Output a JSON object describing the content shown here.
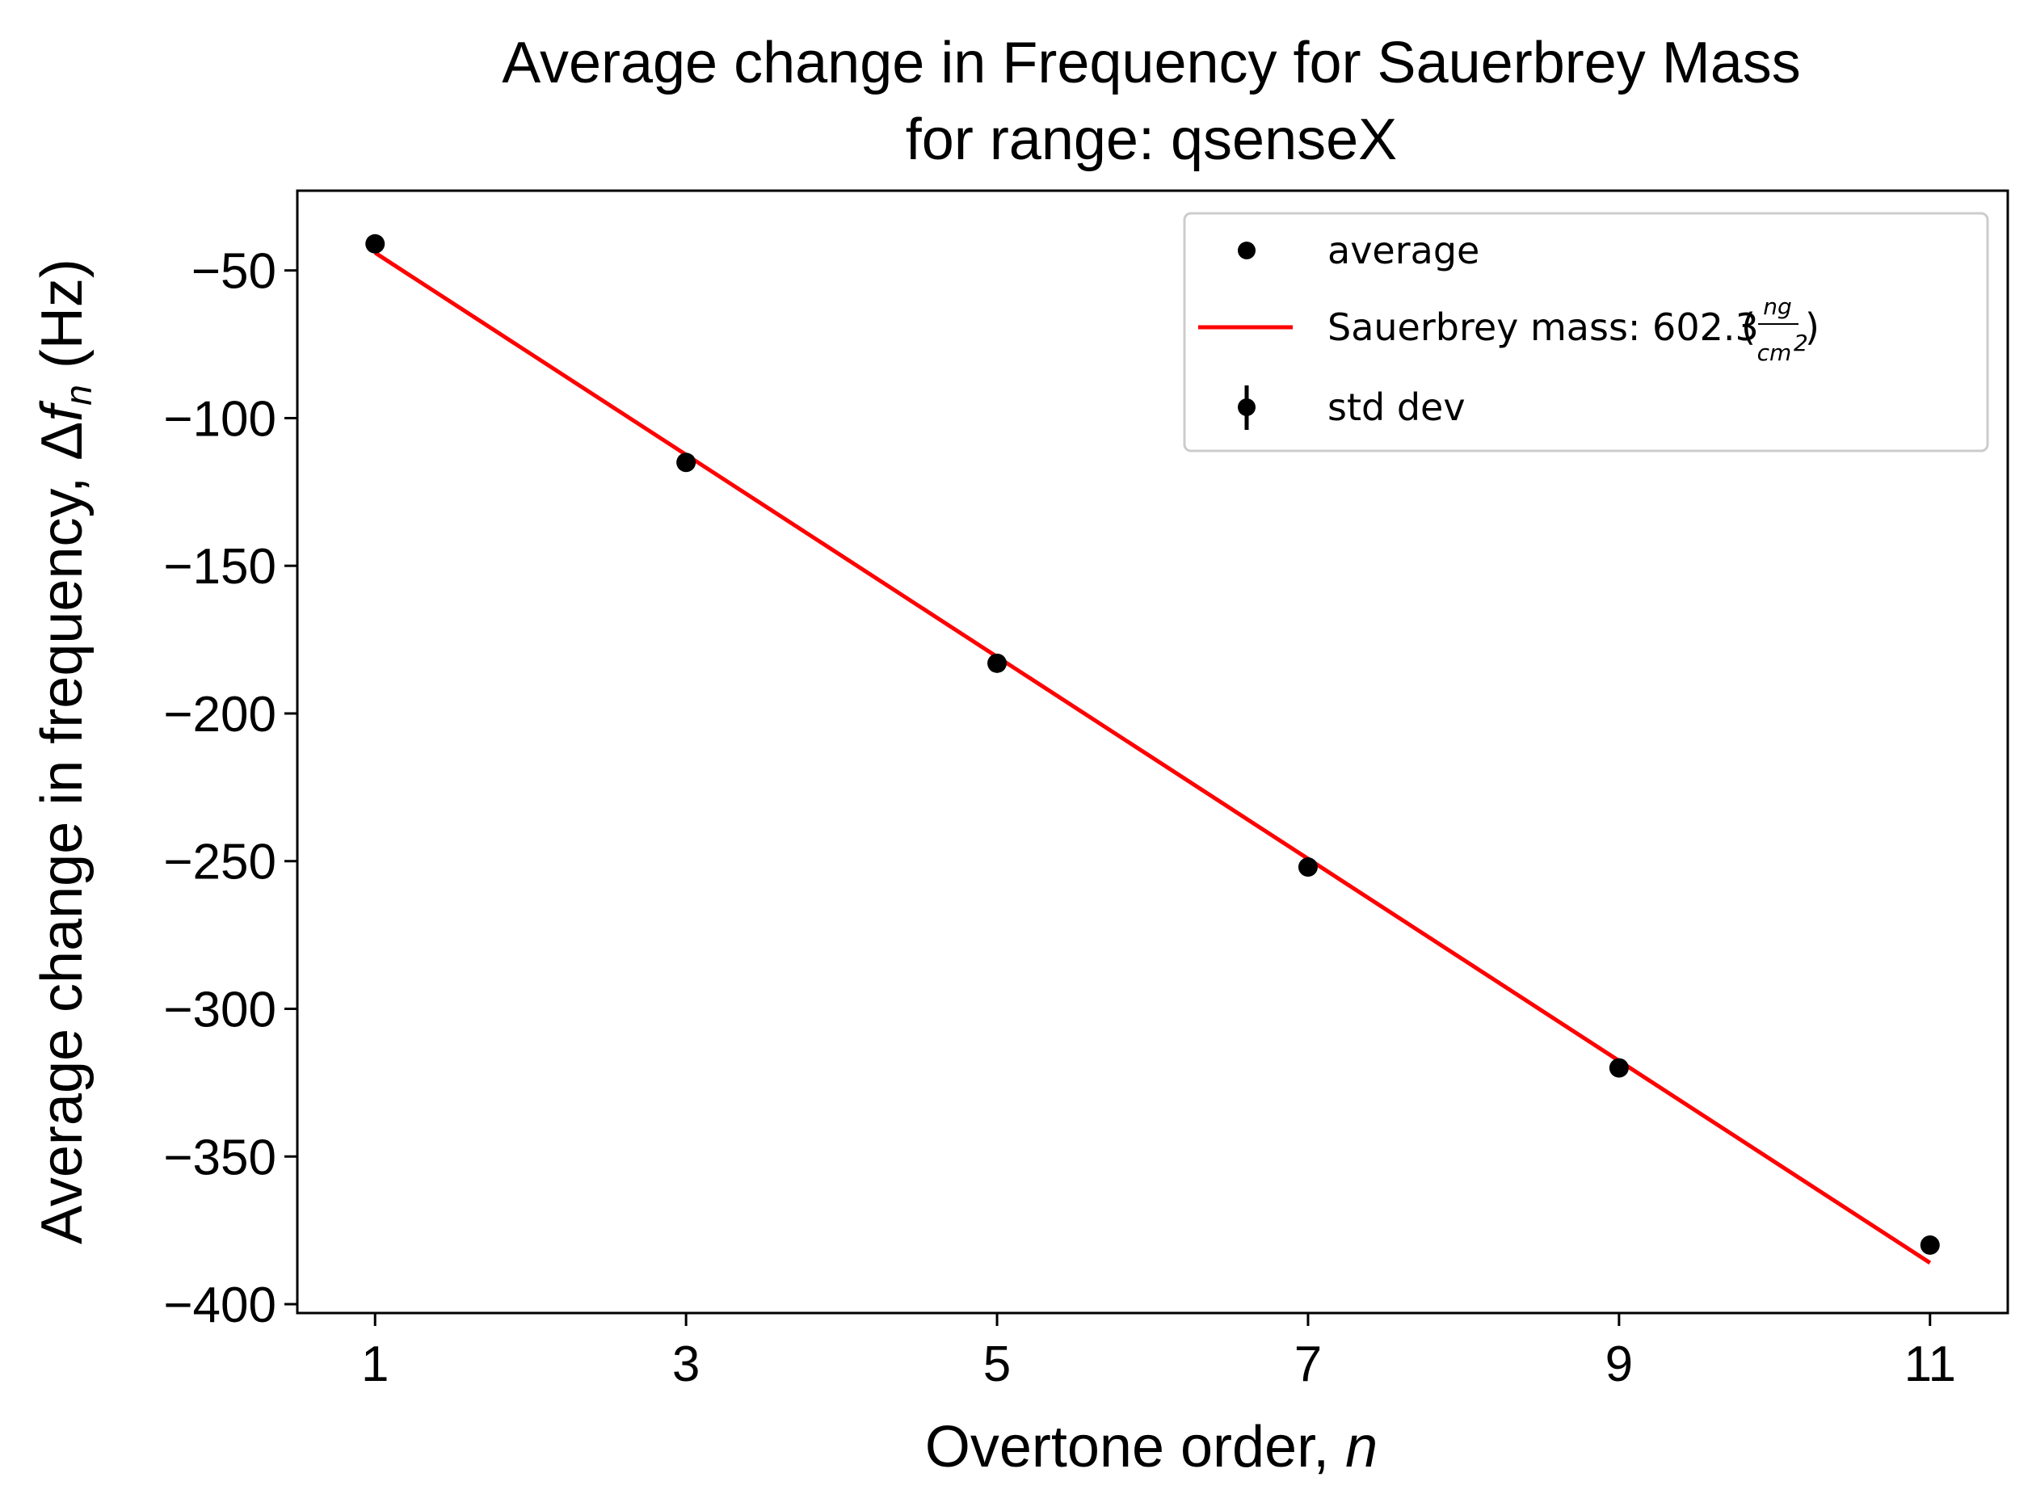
{
  "chart_data": {
    "type": "scatter",
    "title_line1": "Average change in Frequency for Sauerbrey Mass",
    "title_line2": "for range: qsenseX",
    "xlabel_text": "Overtone order, ",
    "xlabel_var": "n",
    "ylabel_text": "Average change in frequency, ",
    "ylabel_delta": "Δ",
    "ylabel_f": "f",
    "ylabel_sub": "n",
    "ylabel_unit": " (Hz)",
    "xlim": [
      0.5,
      11.5
    ],
    "ylim": [
      -403,
      -23
    ],
    "xticks": [
      1,
      3,
      5,
      7,
      9,
      11
    ],
    "xtick_labels": [
      "1",
      "3",
      "5",
      "7",
      "9",
      "11"
    ],
    "yticks": [
      -50,
      -100,
      -150,
      -200,
      -250,
      -300,
      -350,
      -400
    ],
    "ytick_labels": [
      "−50",
      "−100",
      "−150",
      "−200",
      "−250",
      "−300",
      "−350",
      "−400"
    ],
    "series": [
      {
        "name": "average",
        "kind": "points",
        "color": "#000000",
        "x": [
          1,
          3,
          5,
          7,
          9,
          11
        ],
        "y": [
          -41,
          -115,
          -183,
          -252,
          -320,
          -380
        ]
      },
      {
        "name": "Sauerbrey mass: 602.3 ",
        "kind": "line",
        "color": "#ff0000",
        "x": [
          1,
          11
        ],
        "y": [
          -44,
          -386
        ]
      },
      {
        "name": "std dev",
        "kind": "errorbar",
        "color": "#000000"
      }
    ],
    "legend": {
      "placement": "top-right",
      "unit_num": "ng",
      "unit_den": "cm",
      "unit_exp": "2"
    }
  }
}
